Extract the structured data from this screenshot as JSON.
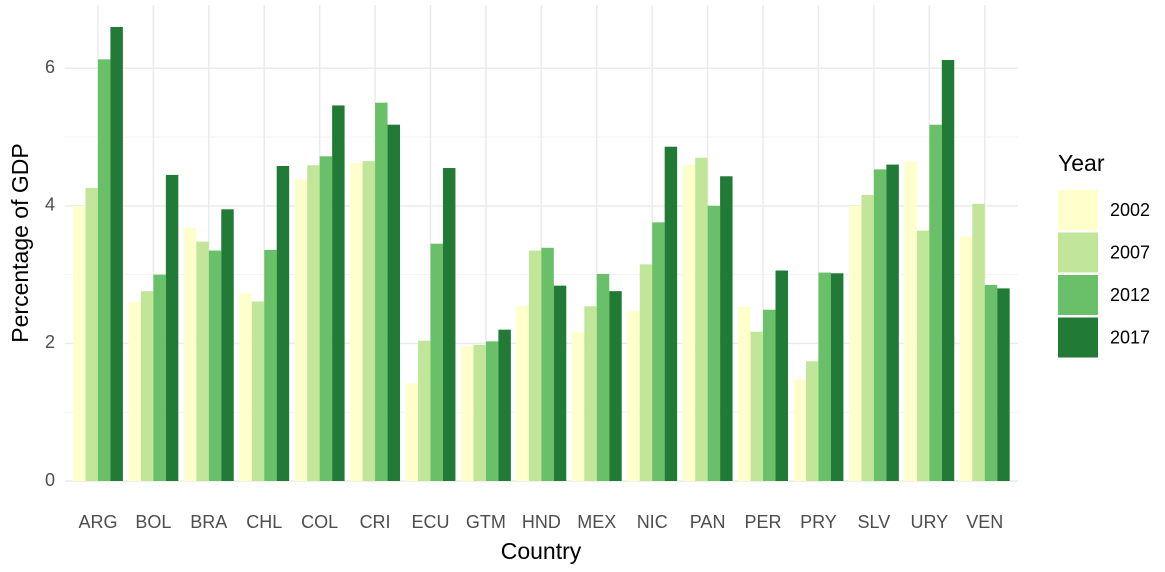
{
  "chart_data": {
    "type": "bar",
    "xlabel": "Country",
    "ylabel": "Percentage of GDP",
    "legend_title": "Year",
    "categories": [
      "ARG",
      "BOL",
      "BRA",
      "CHL",
      "COL",
      "CRI",
      "ECU",
      "GTM",
      "HND",
      "MEX",
      "NIC",
      "PAN",
      "PER",
      "PRY",
      "SLV",
      "URY",
      "VEN"
    ],
    "series": [
      {
        "name": "2002",
        "color": "#ffffcc",
        "values": [
          4.0,
          2.6,
          3.68,
          2.73,
          4.38,
          4.62,
          1.42,
          1.96,
          2.55,
          2.16,
          2.47,
          4.6,
          2.53,
          1.47,
          4.0,
          4.65,
          3.55
        ]
      },
      {
        "name": "2007",
        "color": "#c2e699",
        "values": [
          4.26,
          2.76,
          3.48,
          2.61,
          4.59,
          4.65,
          2.04,
          1.98,
          3.35,
          2.54,
          3.15,
          4.7,
          2.17,
          1.74,
          4.16,
          3.64,
          4.03
        ]
      },
      {
        "name": "2012",
        "color": "#6abf69",
        "values": [
          6.13,
          3.0,
          3.35,
          3.36,
          4.72,
          5.5,
          3.45,
          2.03,
          3.39,
          3.01,
          3.76,
          4.0,
          2.49,
          3.03,
          4.53,
          5.18,
          2.85
        ]
      },
      {
        "name": "2017",
        "color": "#217a35",
        "values": [
          6.6,
          4.45,
          3.95,
          4.58,
          5.46,
          5.18,
          4.55,
          2.2,
          2.84,
          2.76,
          4.86,
          4.43,
          3.06,
          3.02,
          4.6,
          6.12,
          2.8
        ]
      }
    ],
    "ylim": [
      0,
      6.92
    ],
    "yticks": [
      0,
      2,
      4,
      6
    ],
    "grid": true,
    "legend": "right"
  }
}
